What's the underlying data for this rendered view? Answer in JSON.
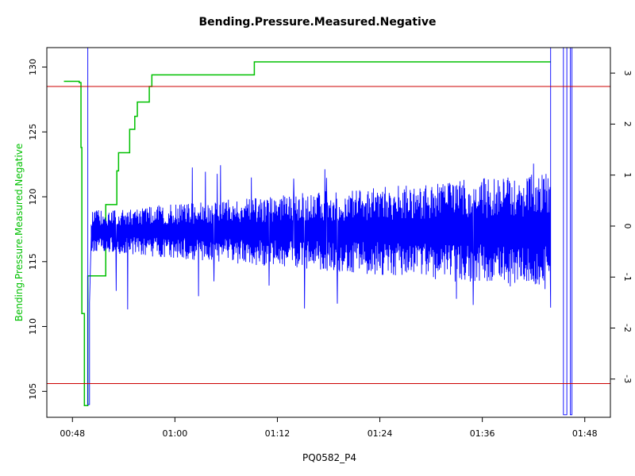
{
  "chart_data": {
    "type": "line",
    "title": "Bending.Pressure.Measured.Negative",
    "xlabel": "PQ0582_P4",
    "ylabel": "Bending.Pressure.Measured.Negative",
    "x_unit": "minutes (time of day, hh:mm)",
    "xlim": [
      45,
      111
    ],
    "x_ticks": [
      {
        "value": 48,
        "label": "00:48"
      },
      {
        "value": 60,
        "label": "01:00"
      },
      {
        "value": 72,
        "label": "01:12"
      },
      {
        "value": 84,
        "label": "01:24"
      },
      {
        "value": 96,
        "label": "01:36"
      },
      {
        "value": 108,
        "label": "01:48"
      }
    ],
    "ylim": [
      103,
      131.5
    ],
    "y_ticks": [
      105,
      110,
      115,
      120,
      125,
      130
    ],
    "y2lim": [
      -3.75,
      3.5
    ],
    "y2_ticks": [
      -3,
      -2,
      -1,
      0,
      1,
      2,
      3
    ],
    "grid": false,
    "colors": {
      "pressure": "#00c000",
      "signal": "#0000ff",
      "limits": "#cc0000",
      "axis": "#000000",
      "ylabel": "#00c000"
    },
    "series": [
      {
        "axis": "left",
        "color": "#00c000",
        "points": [
          [
            47.0,
            128.9
          ],
          [
            48.8,
            128.9
          ],
          [
            48.8,
            128.8
          ],
          [
            49.0,
            128.8
          ],
          [
            49.0,
            123.8
          ],
          [
            49.1,
            123.8
          ],
          [
            49.1,
            111.0
          ],
          [
            49.4,
            111.0
          ],
          [
            49.4,
            103.9
          ],
          [
            49.8,
            103.9
          ],
          [
            49.8,
            113.9
          ],
          [
            51.9,
            113.9
          ],
          [
            51.9,
            119.4
          ],
          [
            53.2,
            119.4
          ],
          [
            53.2,
            122.0
          ],
          [
            53.4,
            122.0
          ],
          [
            53.4,
            123.4
          ],
          [
            54.7,
            123.4
          ],
          [
            54.7,
            125.2
          ],
          [
            55.3,
            125.2
          ],
          [
            55.3,
            126.2
          ],
          [
            55.6,
            126.2
          ],
          [
            55.6,
            127.3
          ],
          [
            57.0,
            127.3
          ],
          [
            57.0,
            128.5
          ],
          [
            57.3,
            128.5
          ],
          [
            57.3,
            129.4
          ],
          [
            69.3,
            129.4
          ],
          [
            69.3,
            130.4
          ],
          [
            104.0,
            130.4
          ]
        ]
      },
      {
        "axis": "right",
        "color": "#0000ff",
        "points": [
          [
            47.0,
            3.5
          ],
          [
            49.8,
            3.5
          ],
          [
            49.8,
            -3.5
          ],
          [
            50.0,
            -3.5
          ],
          [
            50.0,
            -1.5
          ],
          [
            50.2,
            -0.2
          ],
          [
            50.6,
            0.4
          ],
          [
            51.0,
            0.1
          ],
          [
            104.0,
            -1.6
          ],
          [
            104.0,
            3.5
          ],
          [
            105.5,
            3.5
          ],
          [
            105.5,
            -3.7
          ],
          [
            105.9,
            -3.7
          ],
          [
            105.9,
            3.5
          ],
          [
            106.3,
            3.5
          ],
          [
            106.3,
            -3.7
          ],
          [
            106.5,
            -3.7
          ],
          [
            106.5,
            3.5
          ],
          [
            112.4,
            3.5
          ]
        ],
        "oscillation": {
          "x_start": 50.2,
          "x_end": 104.0,
          "center": -0.1,
          "amplitude_start": 0.4,
          "amplitude_end": 1.15,
          "spike_max_low": -1.6,
          "spike_max_high": 1.4
        }
      }
    ],
    "reference_lines": [
      {
        "axis": "left",
        "y": 128.5,
        "color": "#cc0000"
      },
      {
        "axis": "left",
        "y": 105.6,
        "color": "#cc0000"
      }
    ]
  }
}
